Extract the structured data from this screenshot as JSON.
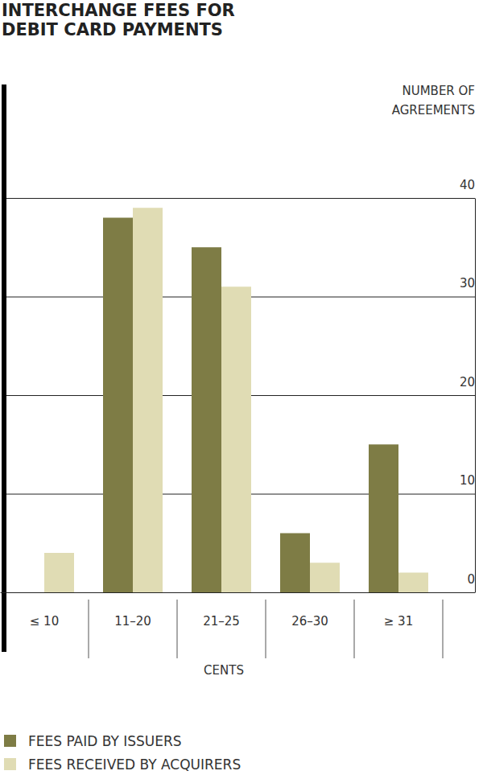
{
  "chart_data": {
    "type": "bar",
    "title": "INTERCHANGE FEES FOR DEBIT CARD PAYMENTS",
    "x_label": "CENTS",
    "y_label": "NUMBER OF AGREEMENTS",
    "categories": [
      "≤ 10",
      "11–20",
      "21–25",
      "26–30",
      "≥ 31"
    ],
    "series": [
      {
        "name": "FEES PAID BY ISSUERS",
        "color": "#7e7c45",
        "values": [
          0,
          38,
          35,
          6,
          15
        ]
      },
      {
        "name": "FEES RECEIVED BY ACQUIRERS",
        "color": "#e0dcb4",
        "values": [
          4,
          39,
          31,
          3,
          2
        ]
      }
    ],
    "ylim": [
      0,
      40
    ],
    "yticks": [
      0,
      10,
      20,
      30,
      40
    ],
    "grid": true,
    "legend": "lower left"
  }
}
